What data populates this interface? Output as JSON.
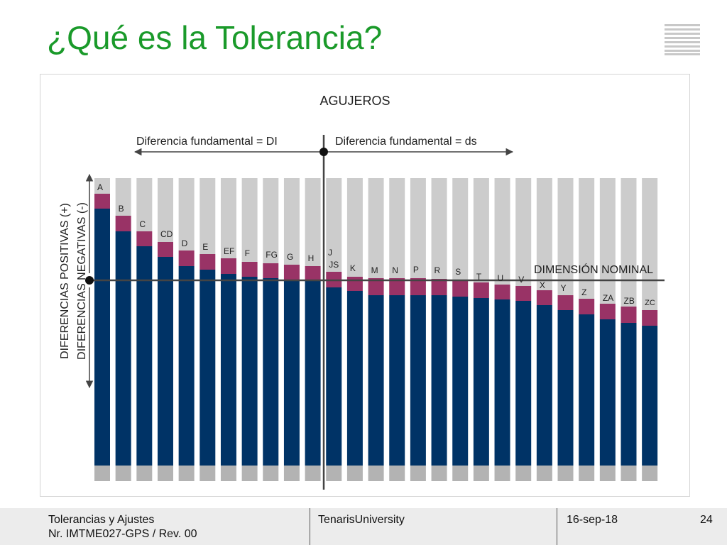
{
  "slide": {
    "title": "¿Qué es la Tolerancia?",
    "logo_icon": "stripes-logo-icon"
  },
  "diagram": {
    "heading": "AGUJEROS",
    "left_label": "Diferencia fundamental = DI",
    "right_label": "Diferencia fundamental = ds",
    "nominal_label": "DIMENSIÓN NOMINAL",
    "axis_positive": "DIFERENCIAS POSITIVAS (+)",
    "axis_negative": "DIFERENCIAS NEGATIVAS (-)",
    "colors": {
      "base": "#003366",
      "tolerance": "#993366",
      "background": "#cccccc",
      "foot": "#b3b3b3",
      "title": "#1a9a2a"
    },
    "letters": [
      "A",
      "B",
      "C",
      "CD",
      "D",
      "E",
      "EF",
      "F",
      "FG",
      "G",
      "H",
      "JS",
      "K",
      "M",
      "N",
      "P",
      "R",
      "S",
      "T",
      "U",
      "V",
      "X",
      "Y",
      "Z",
      "ZA",
      "ZB",
      "ZC"
    ],
    "j_label": "J"
  },
  "footer": {
    "line1": "Tolerancias y Ajustes",
    "line2": "Nr. IMTME027-GPS / Rev. 00",
    "center": "TenarisUniversity",
    "date": "16-sep-18",
    "page": "24"
  }
}
